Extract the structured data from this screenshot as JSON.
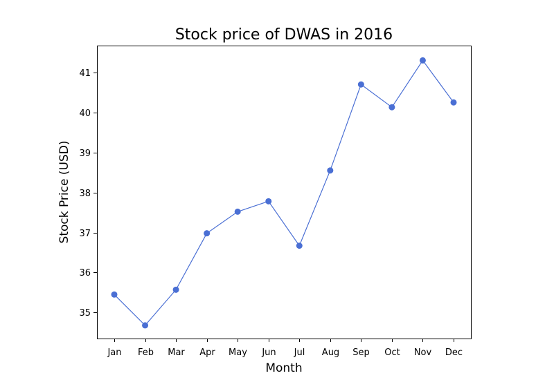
{
  "chart_data": {
    "type": "line",
    "title": "Stock price of DWAS in 2016",
    "xlabel": "Month",
    "ylabel": "Stock Price (USD)",
    "categories": [
      "Jan",
      "Feb",
      "Mar",
      "Apr",
      "May",
      "Jun",
      "Jul",
      "Aug",
      "Sep",
      "Oct",
      "Nov",
      "Dec"
    ],
    "series": [
      {
        "values": [
          35.45,
          34.68,
          35.57,
          36.98,
          37.52,
          37.78,
          36.67,
          38.55,
          40.7,
          40.13,
          41.3,
          40.25
        ],
        "color": "#4a6fd4"
      }
    ],
    "ylim": [
      34.35,
      41.67
    ],
    "yticks": [
      35,
      36,
      37,
      38,
      39,
      40,
      41
    ],
    "grid": false,
    "legend": "none"
  }
}
